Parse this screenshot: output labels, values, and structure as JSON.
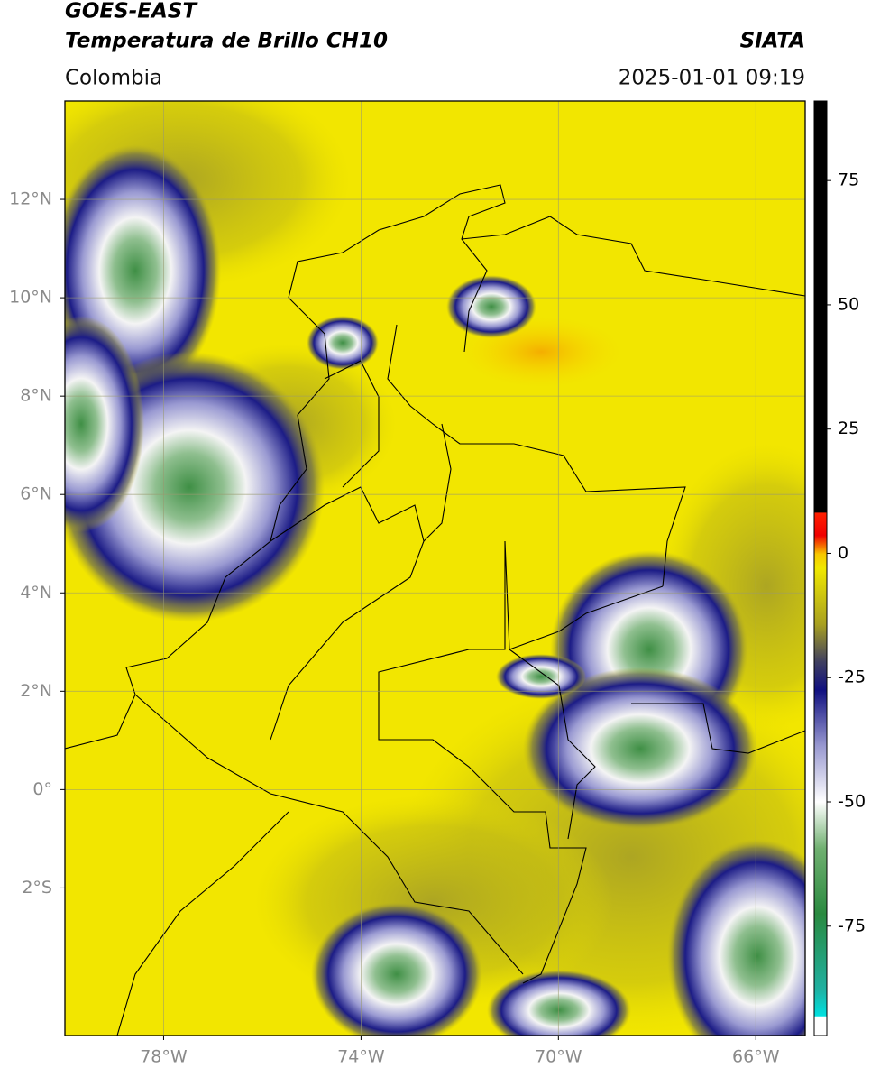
{
  "header": {
    "title": "GOES-EAST",
    "subtitle": "Temperatura de Brillo CH10",
    "brand": "SIATA",
    "region": "Colombia",
    "timestamp": "2025-01-01 09:19"
  },
  "map": {
    "xlim": [
      -80,
      -65
    ],
    "ylim": [
      -5,
      14
    ],
    "xticks": [
      {
        "value": -78,
        "label": "78°W"
      },
      {
        "value": -74,
        "label": "74°W"
      },
      {
        "value": -70,
        "label": "70°W"
      },
      {
        "value": -66,
        "label": "66°W"
      }
    ],
    "yticks": [
      {
        "value": 12,
        "label": "12°N"
      },
      {
        "value": 10,
        "label": "10°N"
      },
      {
        "value": 8,
        "label": "8°N"
      },
      {
        "value": 6,
        "label": "6°N"
      },
      {
        "value": 4,
        "label": "4°N"
      },
      {
        "value": 2,
        "label": "2°N"
      },
      {
        "value": 0,
        "label": "0°"
      },
      {
        "value": -2,
        "label": "2°S"
      }
    ],
    "grid": true
  },
  "colorbar": {
    "lim": [
      -97,
      91
    ],
    "ticks": [
      75,
      50,
      25,
      0,
      -25,
      -50,
      -75
    ]
  }
}
